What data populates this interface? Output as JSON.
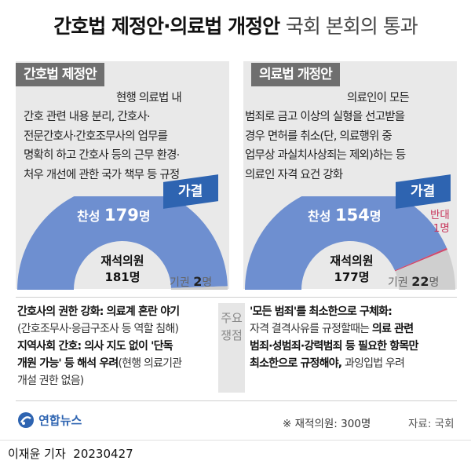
{
  "title": {
    "main": "간호법 제정안·의료법 개정안",
    "sub": "국회 본회의 통과"
  },
  "left": {
    "tag": "간호법 제정안",
    "description": "현행 의료법 내\n간호 관련 내용 분리, 간호사·\n전문간호사·간호조무사의 업무를\n명확히 하고 간호사 등의 근무 환경·\n처우 개선에 관한 국가 책무 등 규정",
    "result": "가결",
    "pro_label": "찬성",
    "pro_value": "179",
    "pro_unit": "명",
    "seats_label": "재석의원",
    "seats_value": "181명",
    "abstain_label": "기권",
    "abstain_value": "2",
    "abstain_unit": "명",
    "colors": {
      "pro": "#6e8fd0",
      "abstain": "#cfcfcf"
    }
  },
  "right": {
    "tag": "의료법 개정안",
    "description": "의료인이 모든\n범죄로 금고 이상의 실형을 선고받을\n경우 면허를 취소(단, 의료행위 중\n업무상 과실치사상죄는 제외)하는 등\n의료인 자격 요건 강화",
    "result": "가결",
    "pro_label": "찬성",
    "pro_value": "154",
    "pro_unit": "명",
    "against_label": "반대",
    "against_value": "1명",
    "seats_label": "재석의원",
    "seats_value": "177명",
    "abstain_label": "기권",
    "abstain_value": "22",
    "abstain_unit": "명",
    "colors": {
      "pro": "#6e8fd0",
      "against": "#d04a6c",
      "abstain": "#cfcfcf"
    }
  },
  "issues_label": "주요\n쟁점",
  "issues_left": [
    {
      "bold": "간호사의 권한 강화: 의료계 혼란 야기",
      "rest": ""
    },
    {
      "bold": "",
      "rest": "(간호조무사·응급구조사 등 역할 침해)"
    },
    {
      "bold": "지역사회 간호: 의사 지도 없이 '단독",
      "rest": ""
    },
    {
      "bold": "개원 가능' 등 해석 우려",
      "rest": "(현행 의료기관"
    },
    {
      "bold": "",
      "rest": "개설 권한 없음)"
    }
  ],
  "issues_right": [
    {
      "bold": "'모든 범죄'를 최소한으로 구체화:",
      "rest": ""
    },
    {
      "pre": "자격 결격사유를 규정할때는 ",
      "bold": "의료 관련",
      "rest": ""
    },
    {
      "bold": "범죄·성범죄·강력범죄 등 필요한 항목만",
      "rest": ""
    },
    {
      "bold": "최소한으로 규정해야,",
      "rest": " 과잉입법 우려"
    }
  ],
  "logo": "연합뉴스",
  "note": "※ 재적의원: 300명",
  "source": "자료: 국회",
  "credit": "이재윤 기자  20230427"
}
